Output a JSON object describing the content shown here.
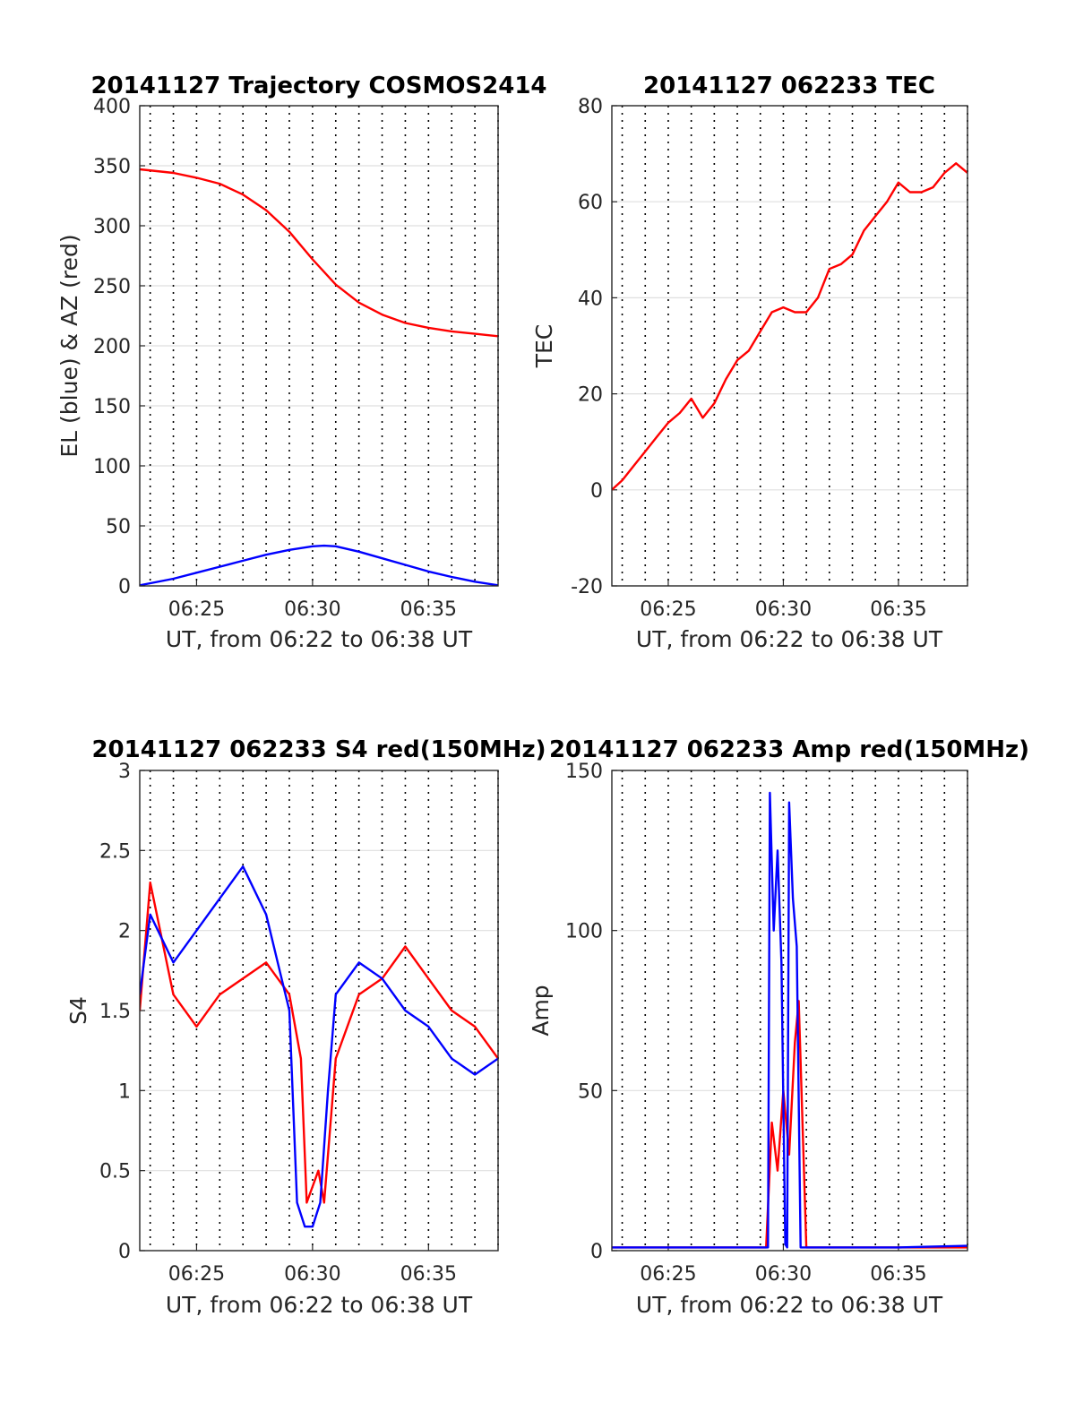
{
  "figure": {
    "background": "#ffffff",
    "colors": {
      "red": "#ff0000",
      "blue": "#0000ff"
    }
  },
  "chart_data": [
    {
      "type": "line",
      "title": "20141127 Trajectory COSMOS2414",
      "xlabel": "UT, from 06:22 to 06:38 UT",
      "ylabel": "EL (blue) & AZ (red)",
      "xlim": [
        "06:22:33",
        "06:38:00"
      ],
      "ylim": [
        0,
        400
      ],
      "yticks": [
        0,
        50,
        100,
        150,
        200,
        250,
        300,
        350,
        400
      ],
      "xtick_labels": [
        "06:25",
        "06:30",
        "06:35"
      ],
      "xtick_values": [
        "06:25",
        "06:30",
        "06:35"
      ],
      "grid": true,
      "series": [
        {
          "color": "#ff0000",
          "x": [
            "06:22:33",
            "06:24:00",
            "06:25:00",
            "06:26:00",
            "06:27:00",
            "06:28:00",
            "06:29:00",
            "06:30:00",
            "06:31:00",
            "06:32:00",
            "06:33:00",
            "06:34:00",
            "06:35:00",
            "06:36:00",
            "06:37:00",
            "06:38:00"
          ],
          "y": [
            347,
            344,
            340,
            335,
            326,
            313,
            295,
            272,
            251,
            236,
            226,
            219,
            215,
            212,
            210,
            208
          ]
        },
        {
          "color": "#0000ff",
          "x": [
            "06:22:33",
            "06:24:00",
            "06:25:00",
            "06:26:00",
            "06:27:00",
            "06:28:00",
            "06:29:00",
            "06:30:00",
            "06:30:30",
            "06:31:00",
            "06:32:00",
            "06:33:00",
            "06:34:00",
            "06:35:00",
            "06:36:00",
            "06:37:00",
            "06:38:00"
          ],
          "y": [
            0.5,
            6,
            11,
            16,
            21,
            26,
            30,
            33,
            33.5,
            33,
            28.5,
            23,
            17.5,
            12,
            7.5,
            3.5,
            0.5
          ]
        }
      ]
    },
    {
      "type": "line",
      "title": "20141127 062233 TEC",
      "xlabel": "UT, from 06:22 to 06:38 UT",
      "ylabel": "TEC",
      "xlim": [
        "06:22:33",
        "06:38:00"
      ],
      "ylim": [
        -20,
        80
      ],
      "yticks": [
        -20,
        0,
        20,
        40,
        60,
        80
      ],
      "xtick_labels": [
        "06:25",
        "06:30",
        "06:35"
      ],
      "xtick_values": [
        "06:25",
        "06:30",
        "06:35"
      ],
      "grid": true,
      "series": [
        {
          "color": "#ff0000",
          "x": [
            "06:22:33",
            "06:23:00",
            "06:23:30",
            "06:24:00",
            "06:24:30",
            "06:25:00",
            "06:25:30",
            "06:26:00",
            "06:26:30",
            "06:27:00",
            "06:27:30",
            "06:28:00",
            "06:28:30",
            "06:29:00",
            "06:29:30",
            "06:30:00",
            "06:30:30",
            "06:31:00",
            "06:31:30",
            "06:32:00",
            "06:32:30",
            "06:33:00",
            "06:33:30",
            "06:34:00",
            "06:34:30",
            "06:35:00",
            "06:35:30",
            "06:36:00",
            "06:36:30",
            "06:37:00",
            "06:37:30",
            "06:38:00"
          ],
          "y": [
            0,
            2,
            5,
            8,
            11,
            14,
            16,
            19,
            15,
            18,
            23,
            27,
            29,
            33,
            37,
            38,
            37,
            37,
            40,
            46,
            47,
            49,
            54,
            57,
            60,
            64,
            62,
            62,
            63,
            66,
            68,
            66
          ]
        }
      ]
    },
    {
      "type": "line",
      "title": "20141127 062233 S4 red(150MHz)",
      "xlabel": "UT, from 06:22 to 06:38 UT",
      "ylabel": "S4",
      "xlim": [
        "06:22:33",
        "06:38:00"
      ],
      "ylim": [
        0,
        3
      ],
      "yticks": [
        0,
        0.5,
        1,
        1.5,
        2,
        2.5,
        3
      ],
      "ytick_labels": [
        "0",
        "0.5",
        "1",
        "1.5",
        "2",
        "2.5",
        "3"
      ],
      "xtick_labels": [
        "06:25",
        "06:30",
        "06:35"
      ],
      "xtick_values": [
        "06:25",
        "06:30",
        "06:35"
      ],
      "grid": true,
      "series": [
        {
          "color": "#ff0000",
          "x": [
            "06:22:33",
            "06:23:00",
            "06:24:00",
            "06:25:00",
            "06:26:00",
            "06:27:00",
            "06:28:00",
            "06:29:00",
            "06:29:30",
            "06:29:45",
            "06:30:00",
            "06:30:15",
            "06:30:30",
            "06:31:00",
            "06:32:00",
            "06:33:00",
            "06:34:00",
            "06:35:00",
            "06:36:00",
            "06:37:00",
            "06:38:00"
          ],
          "y": [
            1.5,
            2.3,
            1.6,
            1.4,
            1.6,
            1.7,
            1.8,
            1.6,
            1.2,
            0.3,
            0.4,
            0.5,
            0.3,
            1.2,
            1.6,
            1.7,
            1.9,
            1.7,
            1.5,
            1.4,
            1.2
          ]
        },
        {
          "color": "#0000ff",
          "x": [
            "06:22:33",
            "06:23:00",
            "06:24:00",
            "06:25:00",
            "06:26:00",
            "06:27:00",
            "06:28:00",
            "06:28:30",
            "06:29:00",
            "06:29:20",
            "06:29:40",
            "06:30:00",
            "06:30:20",
            "06:30:40",
            "06:31:00",
            "06:32:00",
            "06:33:00",
            "06:34:00",
            "06:35:00",
            "06:36:00",
            "06:37:00",
            "06:38:00"
          ],
          "y": [
            1.6,
            2.1,
            1.8,
            2.0,
            2.2,
            2.4,
            2.1,
            1.8,
            1.5,
            0.3,
            0.15,
            0.15,
            0.3,
            1.0,
            1.6,
            1.8,
            1.7,
            1.5,
            1.4,
            1.2,
            1.1,
            1.2
          ]
        }
      ]
    },
    {
      "type": "line",
      "title": "20141127 062233 Amp red(150MHz)",
      "xlabel": "UT, from 06:22 to 06:38 UT",
      "ylabel": "Amp",
      "xlim": [
        "06:22:33",
        "06:38:00"
      ],
      "ylim": [
        0,
        150
      ],
      "yticks": [
        0,
        50,
        100,
        150
      ],
      "xtick_labels": [
        "06:25",
        "06:30",
        "06:35"
      ],
      "xtick_values": [
        "06:25",
        "06:30",
        "06:35"
      ],
      "grid": true,
      "series": [
        {
          "color": "#ff0000",
          "x": [
            "06:22:33",
            "06:29:15",
            "06:29:30",
            "06:29:45",
            "06:30:00",
            "06:30:15",
            "06:30:30",
            "06:30:40",
            "06:31:00",
            "06:38:00"
          ],
          "y": [
            1,
            1,
            40,
            25,
            50,
            30,
            65,
            78,
            1,
            1
          ]
        },
        {
          "color": "#0000ff",
          "x": [
            "06:22:33",
            "06:25:00",
            "06:29:00",
            "06:29:20",
            "06:29:25",
            "06:29:35",
            "06:29:45",
            "06:29:55",
            "06:30:05",
            "06:30:10",
            "06:30:15",
            "06:30:25",
            "06:30:35",
            "06:30:45",
            "06:31:00",
            "06:35:00",
            "06:38:00"
          ],
          "y": [
            1,
            1,
            1,
            1,
            143,
            100,
            125,
            90,
            2,
            1,
            140,
            110,
            95,
            1,
            1,
            1,
            1.5
          ]
        }
      ]
    }
  ]
}
